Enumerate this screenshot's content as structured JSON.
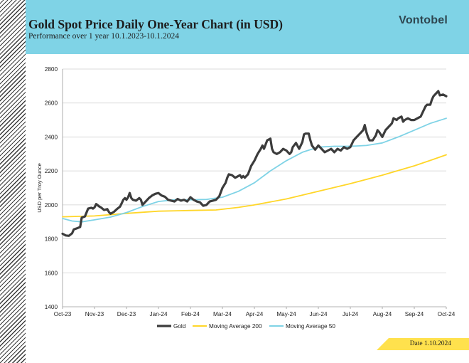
{
  "header": {
    "title": "Gold Spot Price Daily One-Year Chart (in USD)",
    "subtitle": "Performance over 1 year 10.1.2023-10.1.2024",
    "brand": "Vontobel"
  },
  "footer": {
    "date_label": "Date 1.10.2024"
  },
  "colors": {
    "gold": "#3c3c3c",
    "ma200": "#ffd629",
    "ma50": "#7fd3e6",
    "header_bg": "#7fd3e6",
    "grid": "#cfcfcf"
  },
  "chart_data": {
    "type": "line",
    "title": "Gold Spot Price Daily One-Year Chart (in USD)",
    "xlabel": "",
    "ylabel": "USD per Troy Ounce",
    "ylim": [
      1400,
      2800
    ],
    "yticks": [
      1400,
      1600,
      1800,
      2000,
      2200,
      2400,
      2600,
      2800
    ],
    "xticks": [
      "Oct-23",
      "Nov-23",
      "Dec-23",
      "Jan-24",
      "Feb-24",
      "Mar-24",
      "Apr-24",
      "May-24",
      "Jun-24",
      "Jul-24",
      "Aug-24",
      "Sep-24",
      "Oct-24"
    ],
    "grid": true,
    "legend_position": "bottom-center",
    "x_unit": "months since 1 Oct 2023",
    "series": [
      {
        "name": "Gold",
        "key": "gold",
        "points": [
          [
            0,
            1830
          ],
          [
            0.1,
            1820
          ],
          [
            0.2,
            1818
          ],
          [
            0.3,
            1833
          ],
          [
            0.35,
            1855
          ],
          [
            0.45,
            1862
          ],
          [
            0.55,
            1870
          ],
          [
            0.6,
            1925
          ],
          [
            0.7,
            1932
          ],
          [
            0.8,
            1978
          ],
          [
            0.9,
            1983
          ],
          [
            0.95,
            1978
          ],
          [
            1.0,
            1985
          ],
          [
            1.05,
            2005
          ],
          [
            1.15,
            1990
          ],
          [
            1.2,
            1985
          ],
          [
            1.3,
            1970
          ],
          [
            1.4,
            1975
          ],
          [
            1.45,
            1958
          ],
          [
            1.5,
            1948
          ],
          [
            1.6,
            1958
          ],
          [
            1.7,
            1975
          ],
          [
            1.8,
            1990
          ],
          [
            1.85,
            2010
          ],
          [
            1.9,
            2030
          ],
          [
            1.95,
            2040
          ],
          [
            2.0,
            2030
          ],
          [
            2.05,
            2045
          ],
          [
            2.1,
            2070
          ],
          [
            2.15,
            2040
          ],
          [
            2.2,
            2030
          ],
          [
            2.3,
            2025
          ],
          [
            2.4,
            2040
          ],
          [
            2.45,
            2030
          ],
          [
            2.5,
            2000
          ],
          [
            2.6,
            2020
          ],
          [
            2.7,
            2040
          ],
          [
            2.8,
            2055
          ],
          [
            2.9,
            2065
          ],
          [
            3.0,
            2070
          ],
          [
            3.05,
            2062
          ],
          [
            3.1,
            2055
          ],
          [
            3.2,
            2048
          ],
          [
            3.3,
            2030
          ],
          [
            3.4,
            2025
          ],
          [
            3.5,
            2020
          ],
          [
            3.6,
            2035
          ],
          [
            3.7,
            2025
          ],
          [
            3.8,
            2030
          ],
          [
            3.9,
            2020
          ],
          [
            4.0,
            2045
          ],
          [
            4.1,
            2030
          ],
          [
            4.2,
            2020
          ],
          [
            4.3,
            2015
          ],
          [
            4.4,
            1995
          ],
          [
            4.5,
            2000
          ],
          [
            4.6,
            2020
          ],
          [
            4.7,
            2025
          ],
          [
            4.8,
            2030
          ],
          [
            4.9,
            2050
          ],
          [
            5.0,
            2100
          ],
          [
            5.1,
            2130
          ],
          [
            5.15,
            2160
          ],
          [
            5.2,
            2180
          ],
          [
            5.3,
            2175
          ],
          [
            5.4,
            2160
          ],
          [
            5.5,
            2170
          ],
          [
            5.55,
            2175
          ],
          [
            5.6,
            2160
          ],
          [
            5.65,
            2170
          ],
          [
            5.7,
            2160
          ],
          [
            5.8,
            2180
          ],
          [
            5.9,
            2230
          ],
          [
            6.0,
            2260
          ],
          [
            6.1,
            2300
          ],
          [
            6.2,
            2330
          ],
          [
            6.25,
            2350
          ],
          [
            6.3,
            2330
          ],
          [
            6.4,
            2380
          ],
          [
            6.5,
            2390
          ],
          [
            6.55,
            2330
          ],
          [
            6.6,
            2310
          ],
          [
            6.7,
            2300
          ],
          [
            6.8,
            2310
          ],
          [
            6.9,
            2330
          ],
          [
            7.0,
            2320
          ],
          [
            7.1,
            2300
          ],
          [
            7.15,
            2310
          ],
          [
            7.2,
            2340
          ],
          [
            7.3,
            2365
          ],
          [
            7.4,
            2330
          ],
          [
            7.5,
            2370
          ],
          [
            7.55,
            2415
          ],
          [
            7.6,
            2420
          ],
          [
            7.7,
            2420
          ],
          [
            7.75,
            2380
          ],
          [
            7.8,
            2350
          ],
          [
            7.9,
            2325
          ],
          [
            8.0,
            2350
          ],
          [
            8.1,
            2330
          ],
          [
            8.2,
            2310
          ],
          [
            8.3,
            2320
          ],
          [
            8.4,
            2330
          ],
          [
            8.5,
            2310
          ],
          [
            8.6,
            2330
          ],
          [
            8.7,
            2320
          ],
          [
            8.8,
            2340
          ],
          [
            8.9,
            2330
          ],
          [
            9.0,
            2340
          ],
          [
            9.05,
            2360
          ],
          [
            9.1,
            2380
          ],
          [
            9.2,
            2400
          ],
          [
            9.3,
            2420
          ],
          [
            9.4,
            2440
          ],
          [
            9.45,
            2470
          ],
          [
            9.5,
            2430
          ],
          [
            9.55,
            2400
          ],
          [
            9.6,
            2380
          ],
          [
            9.7,
            2380
          ],
          [
            9.8,
            2410
          ],
          [
            9.85,
            2440
          ],
          [
            9.9,
            2430
          ],
          [
            10.0,
            2400
          ],
          [
            10.1,
            2440
          ],
          [
            10.2,
            2460
          ],
          [
            10.3,
            2480
          ],
          [
            10.35,
            2510
          ],
          [
            10.45,
            2500
          ],
          [
            10.5,
            2510
          ],
          [
            10.6,
            2520
          ],
          [
            10.65,
            2490
          ],
          [
            10.7,
            2500
          ],
          [
            10.8,
            2510
          ],
          [
            10.9,
            2500
          ],
          [
            11.0,
            2500
          ],
          [
            11.1,
            2510
          ],
          [
            11.2,
            2520
          ],
          [
            11.3,
            2560
          ],
          [
            11.35,
            2580
          ],
          [
            11.4,
            2590
          ],
          [
            11.5,
            2590
          ],
          [
            11.55,
            2620
          ],
          [
            11.6,
            2640
          ],
          [
            11.7,
            2660
          ],
          [
            11.75,
            2670
          ],
          [
            11.8,
            2645
          ],
          [
            11.9,
            2650
          ],
          [
            12.0,
            2640
          ]
        ]
      },
      {
        "name": "Moving Average 200",
        "key": "ma200",
        "points": [
          [
            0,
            1930
          ],
          [
            1.0,
            1935
          ],
          [
            2.0,
            1950
          ],
          [
            3.0,
            1963
          ],
          [
            4.0,
            1967
          ],
          [
            4.8,
            1970
          ],
          [
            5.5,
            1985
          ],
          [
            6.0,
            2000
          ],
          [
            7.0,
            2035
          ],
          [
            8.0,
            2080
          ],
          [
            9.0,
            2125
          ],
          [
            10.0,
            2175
          ],
          [
            11.0,
            2230
          ],
          [
            11.5,
            2262
          ],
          [
            12.0,
            2295
          ]
        ]
      },
      {
        "name": "Moving Average 50",
        "key": "ma50",
        "points": [
          [
            0,
            1920
          ],
          [
            0.3,
            1905
          ],
          [
            0.6,
            1900
          ],
          [
            1.0,
            1912
          ],
          [
            1.5,
            1928
          ],
          [
            2.0,
            1955
          ],
          [
            2.5,
            1990
          ],
          [
            3.0,
            2020
          ],
          [
            3.5,
            2030
          ],
          [
            4.0,
            2030
          ],
          [
            4.5,
            2032
          ],
          [
            5.0,
            2045
          ],
          [
            5.5,
            2080
          ],
          [
            6.0,
            2130
          ],
          [
            6.5,
            2200
          ],
          [
            7.0,
            2260
          ],
          [
            7.5,
            2310
          ],
          [
            8.0,
            2340
          ],
          [
            8.5,
            2345
          ],
          [
            9.0,
            2345
          ],
          [
            9.5,
            2350
          ],
          [
            10.0,
            2365
          ],
          [
            10.5,
            2400
          ],
          [
            11.0,
            2440
          ],
          [
            11.5,
            2480
          ],
          [
            12.0,
            2510
          ]
        ]
      }
    ]
  }
}
